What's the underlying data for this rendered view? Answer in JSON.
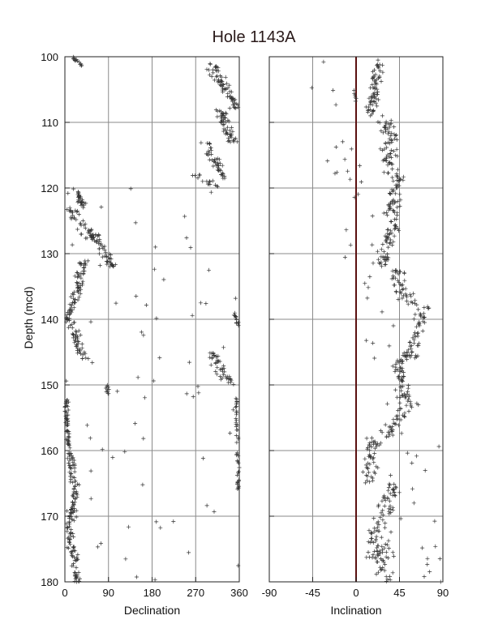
{
  "chart_data": {
    "type": "scatter",
    "title": "Hole 1143A",
    "ylabel": "Depth (mcd)",
    "ylim": [
      100,
      180
    ],
    "y_ticks": [
      "100",
      "110",
      "120",
      "130",
      "140",
      "150",
      "160",
      "170",
      "180"
    ],
    "y_tick_values": [
      100,
      110,
      120,
      130,
      140,
      150,
      160,
      170,
      180
    ],
    "grid": true,
    "marker": "plus",
    "marker_color": "#333333",
    "zero_line_color": "#5a1010",
    "panels": [
      {
        "xlabel": "Declination",
        "xlim": [
          0,
          360
        ],
        "x_ticks": [
          "0",
          "90",
          "180",
          "270",
          "360"
        ],
        "x_tick_values": [
          0,
          90,
          180,
          270,
          360
        ],
        "series": [
          {
            "depth_range": [
              100,
              101.5
            ],
            "x": [
              15,
              35
            ],
            "spread": 12,
            "count": 14
          },
          {
            "depth_range": [
              101,
              108
            ],
            "x": [
              300,
              355
            ],
            "spread": 18,
            "count": 70
          },
          {
            "depth_range": [
              108,
              113
            ],
            "x": [
              320,
              345
            ],
            "spread": 16,
            "count": 55
          },
          {
            "depth_range": [
              113,
              119
            ],
            "x": [
              290,
              330
            ],
            "spread": 18,
            "count": 45
          },
          {
            "depth_range": [
              118,
              120
            ],
            "x": [
              270,
              320
            ],
            "spread": 20,
            "count": 16
          },
          {
            "depth_range": [
              120,
              123
            ],
            "x": [
              20,
              40
            ],
            "spread": 10,
            "count": 30
          },
          {
            "depth_range": [
              123,
              128
            ],
            "x": [
              10,
              60
            ],
            "spread": 22,
            "count": 45
          },
          {
            "depth_range": [
              127,
              132
            ],
            "x": [
              60,
              100
            ],
            "spread": 16,
            "count": 45
          },
          {
            "depth_range": [
              131,
              137
            ],
            "x": [
              40,
              20
            ],
            "spread": 14,
            "count": 50
          },
          {
            "depth_range": [
              137,
              140
            ],
            "x": [
              20,
              5
            ],
            "spread": 10,
            "count": 25
          },
          {
            "depth_range": [
              139,
              141
            ],
            "x": [
              350,
              358
            ],
            "spread": 5,
            "count": 12
          },
          {
            "depth_range": [
              140,
              146
            ],
            "x": [
              10,
              40
            ],
            "spread": 14,
            "count": 50
          },
          {
            "depth_range": [
              145,
              150
            ],
            "x": [
              300,
              340
            ],
            "spread": 18,
            "count": 45
          },
          {
            "depth_range": [
              150,
              151.5
            ],
            "x": [
              85,
              90
            ],
            "spread": 6,
            "count": 10
          },
          {
            "depth_range": [
              152,
              160
            ],
            "x": [
              3,
              8
            ],
            "spread": 6,
            "count": 50
          },
          {
            "depth_range": [
              152,
              166
            ],
            "x": [
              354,
              358
            ],
            "spread": 4,
            "count": 45
          },
          {
            "depth_range": [
              160,
              165
            ],
            "x": [
              10,
              20
            ],
            "spread": 14,
            "count": 35
          },
          {
            "depth_range": [
              165,
              172
            ],
            "x": [
              25,
              8
            ],
            "spread": 12,
            "count": 55
          },
          {
            "depth_range": [
              172,
              180
            ],
            "x": [
              10,
              25
            ],
            "spread": 14,
            "count": 60
          },
          {
            "depth_range": [
              120,
              180
            ],
            "x": [
              0,
              360
            ],
            "spread": 180,
            "count": 70
          }
        ]
      },
      {
        "xlabel": "Inclination",
        "xlim": [
          -90,
          90
        ],
        "x_ticks": [
          "-90",
          "-45",
          "0",
          "45",
          "90"
        ],
        "x_tick_values": [
          -90,
          -45,
          0,
          45,
          90
        ],
        "zero_line": 0,
        "series": [
          {
            "depth_range": [
              100,
              109
            ],
            "x": [
              25,
              15
            ],
            "spread": 8,
            "count": 70
          },
          {
            "depth_range": [
              109,
              118
            ],
            "x": [
              30,
              38
            ],
            "spread": 12,
            "count": 70
          },
          {
            "depth_range": [
              118,
              125
            ],
            "x": [
              45,
              35
            ],
            "spread": 12,
            "count": 55
          },
          {
            "depth_range": [
              125,
              132
            ],
            "x": [
              40,
              28
            ],
            "spread": 12,
            "count": 55
          },
          {
            "depth_range": [
              132,
              138
            ],
            "x": [
              38,
              58
            ],
            "spread": 14,
            "count": 45
          },
          {
            "depth_range": [
              138,
              146
            ],
            "x": [
              72,
              55
            ],
            "spread": 10,
            "count": 60
          },
          {
            "depth_range": [
              146,
              152
            ],
            "x": [
              45,
              50
            ],
            "spread": 10,
            "count": 50
          },
          {
            "depth_range": [
              152,
              158
            ],
            "x": [
              60,
              30
            ],
            "spread": 12,
            "count": 45
          },
          {
            "depth_range": [
              158,
              165
            ],
            "x": [
              20,
              12
            ],
            "spread": 10,
            "count": 50
          },
          {
            "depth_range": [
              165,
              172
            ],
            "x": [
              40,
              25
            ],
            "spread": 14,
            "count": 50
          },
          {
            "depth_range": [
              172,
              180
            ],
            "x": [
              20,
              30
            ],
            "spread": 18,
            "count": 70
          },
          {
            "depth_range": [
              105,
              107
            ],
            "x": [
              -2,
              0
            ],
            "spread": 2,
            "count": 6
          },
          {
            "depth_range": [
              100,
              180
            ],
            "x": [
              -40,
              80
            ],
            "spread": 40,
            "count": 60
          }
        ]
      }
    ]
  }
}
